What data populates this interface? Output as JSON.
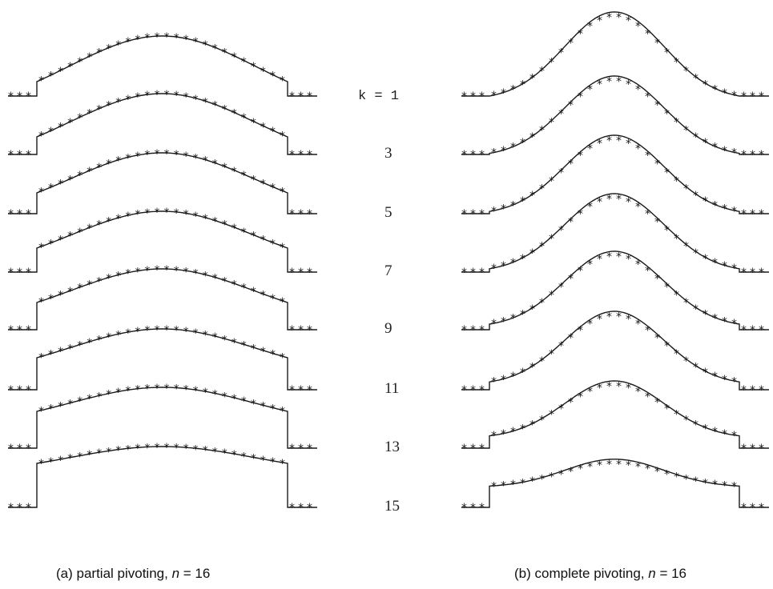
{
  "chart_data": [
    {
      "type": "line",
      "title": "(a)  partial pivoting, n = 16",
      "caption_parts": [
        "(a)  partial pivoting, ",
        "n",
        " = 16"
      ],
      "pivoting": "partial",
      "n": 16,
      "k_values": [
        1,
        3,
        5,
        7,
        9,
        11,
        13,
        15
      ],
      "series_shape": "piecewise: flat zero outside support, step up at edges, gaussian-like bump inside",
      "marker": "asterisk",
      "panels": [
        {
          "k": 1,
          "edge_height": 0.18,
          "peak": 0.75
        },
        {
          "k": 3,
          "edge_height": 0.22,
          "peak": 0.76
        },
        {
          "k": 5,
          "edge_height": 0.26,
          "peak": 0.76
        },
        {
          "k": 7,
          "edge_height": 0.3,
          "peak": 0.76
        },
        {
          "k": 9,
          "edge_height": 0.34,
          "peak": 0.76
        },
        {
          "k": 11,
          "edge_height": 0.4,
          "peak": 0.76
        },
        {
          "k": 13,
          "edge_height": 0.46,
          "peak": 0.76
        },
        {
          "k": 15,
          "edge_height": 0.55,
          "peak": 0.76
        }
      ]
    },
    {
      "type": "line",
      "title": "(b)  complete pivoting, n = 16",
      "caption_parts": [
        "(b)  complete pivoting, ",
        "n",
        " = 16"
      ],
      "pivoting": "complete",
      "n": 16,
      "k_values": [
        1,
        3,
        5,
        7,
        9,
        11,
        13,
        15
      ],
      "marker": "asterisk",
      "panels": [
        {
          "k": 1,
          "edge_height": 0.0,
          "peak": 1.5
        },
        {
          "k": 3,
          "edge_height": 0.02,
          "peak": 1.4
        },
        {
          "k": 5,
          "edge_height": 0.04,
          "peak": 1.4
        },
        {
          "k": 7,
          "edge_height": 0.06,
          "peak": 1.4
        },
        {
          "k": 9,
          "edge_height": 0.1,
          "peak": 1.4
        },
        {
          "k": 11,
          "edge_height": 0.14,
          "peak": 1.4
        },
        {
          "k": 13,
          "edge_height": 0.22,
          "peak": 1.2
        },
        {
          "k": 15,
          "edge_height": 0.38,
          "peak": 0.86
        }
      ]
    }
  ],
  "k_labels": [
    "k = 1",
    "3",
    "5",
    "7",
    "9",
    "11",
    "13",
    "15"
  ]
}
